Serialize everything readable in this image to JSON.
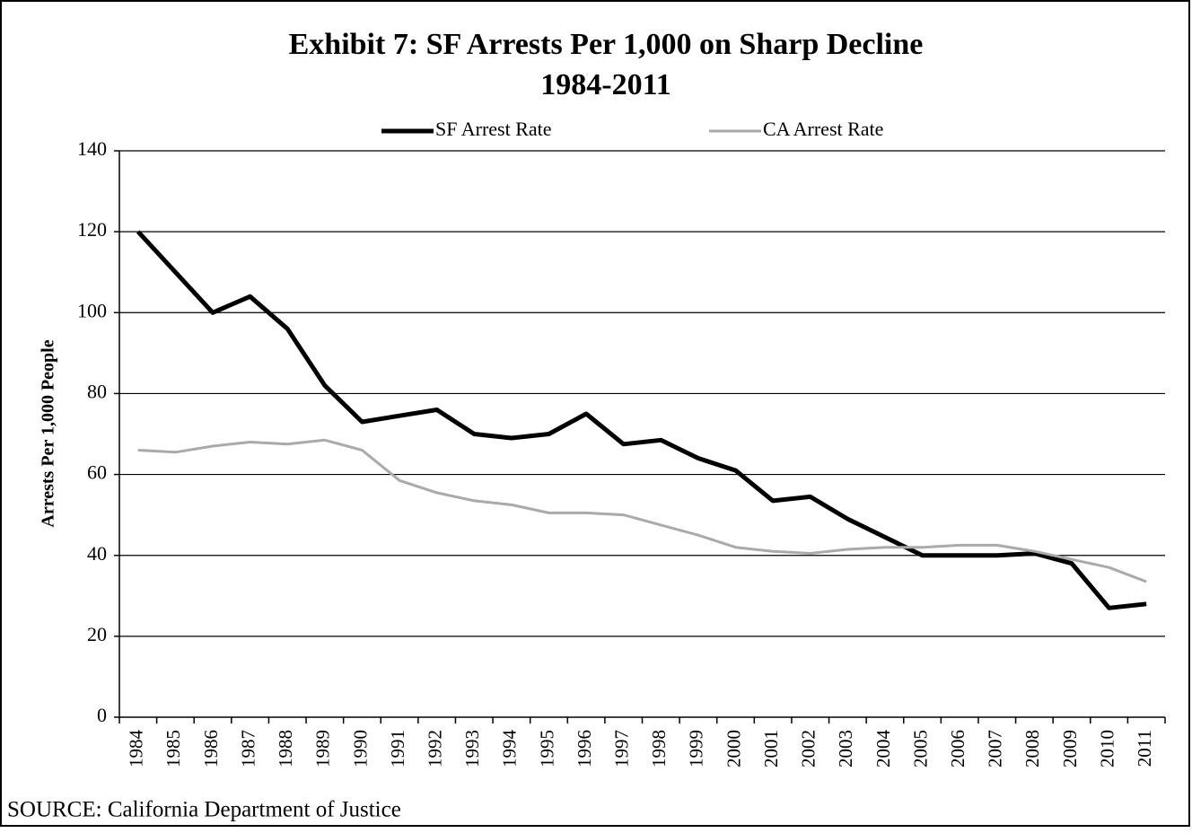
{
  "chart_data": {
    "type": "line",
    "title": "Exhibit 7: SF Arrests Per 1,000 on Sharp Decline",
    "subtitle": "1984-2011",
    "y_label": "Arrests Per 1,000 People",
    "source": "SOURCE:  California Department of Justice",
    "categories": [
      "1984",
      "1985",
      "1986",
      "1987",
      "1988",
      "1989",
      "1990",
      "1991",
      "1992",
      "1993",
      "1994",
      "1995",
      "1996",
      "1997",
      "1998",
      "1999",
      "2000",
      "2001",
      "2002",
      "2003",
      "2004",
      "2005",
      "2006",
      "2007",
      "2008",
      "2009",
      "2010",
      "2011"
    ],
    "series": [
      {
        "name": "SF Arrest Rate",
        "color": "#000000",
        "values": [
          120,
          110,
          100,
          104,
          96,
          82,
          73,
          74.5,
          76,
          70,
          69,
          70,
          75,
          67.5,
          68.5,
          64,
          61,
          53.5,
          54.5,
          49,
          44.5,
          40,
          40,
          40,
          40.5,
          38,
          27,
          28
        ]
      },
      {
        "name": "CA Arrest Rate",
        "color": "#aaaaaa",
        "values": [
          66,
          65.5,
          67,
          68,
          67.5,
          68.5,
          66,
          58.5,
          55.5,
          53.5,
          52.5,
          50.5,
          50.5,
          50,
          47.5,
          45,
          42,
          41,
          40.5,
          41.5,
          42,
          42,
          42.5,
          42.5,
          41,
          39,
          37,
          33.5
        ]
      }
    ],
    "ylim": [
      0,
      140
    ],
    "yticks": [
      0,
      20,
      40,
      60,
      80,
      100,
      120,
      140
    ],
    "grid": true,
    "legend": "top"
  }
}
